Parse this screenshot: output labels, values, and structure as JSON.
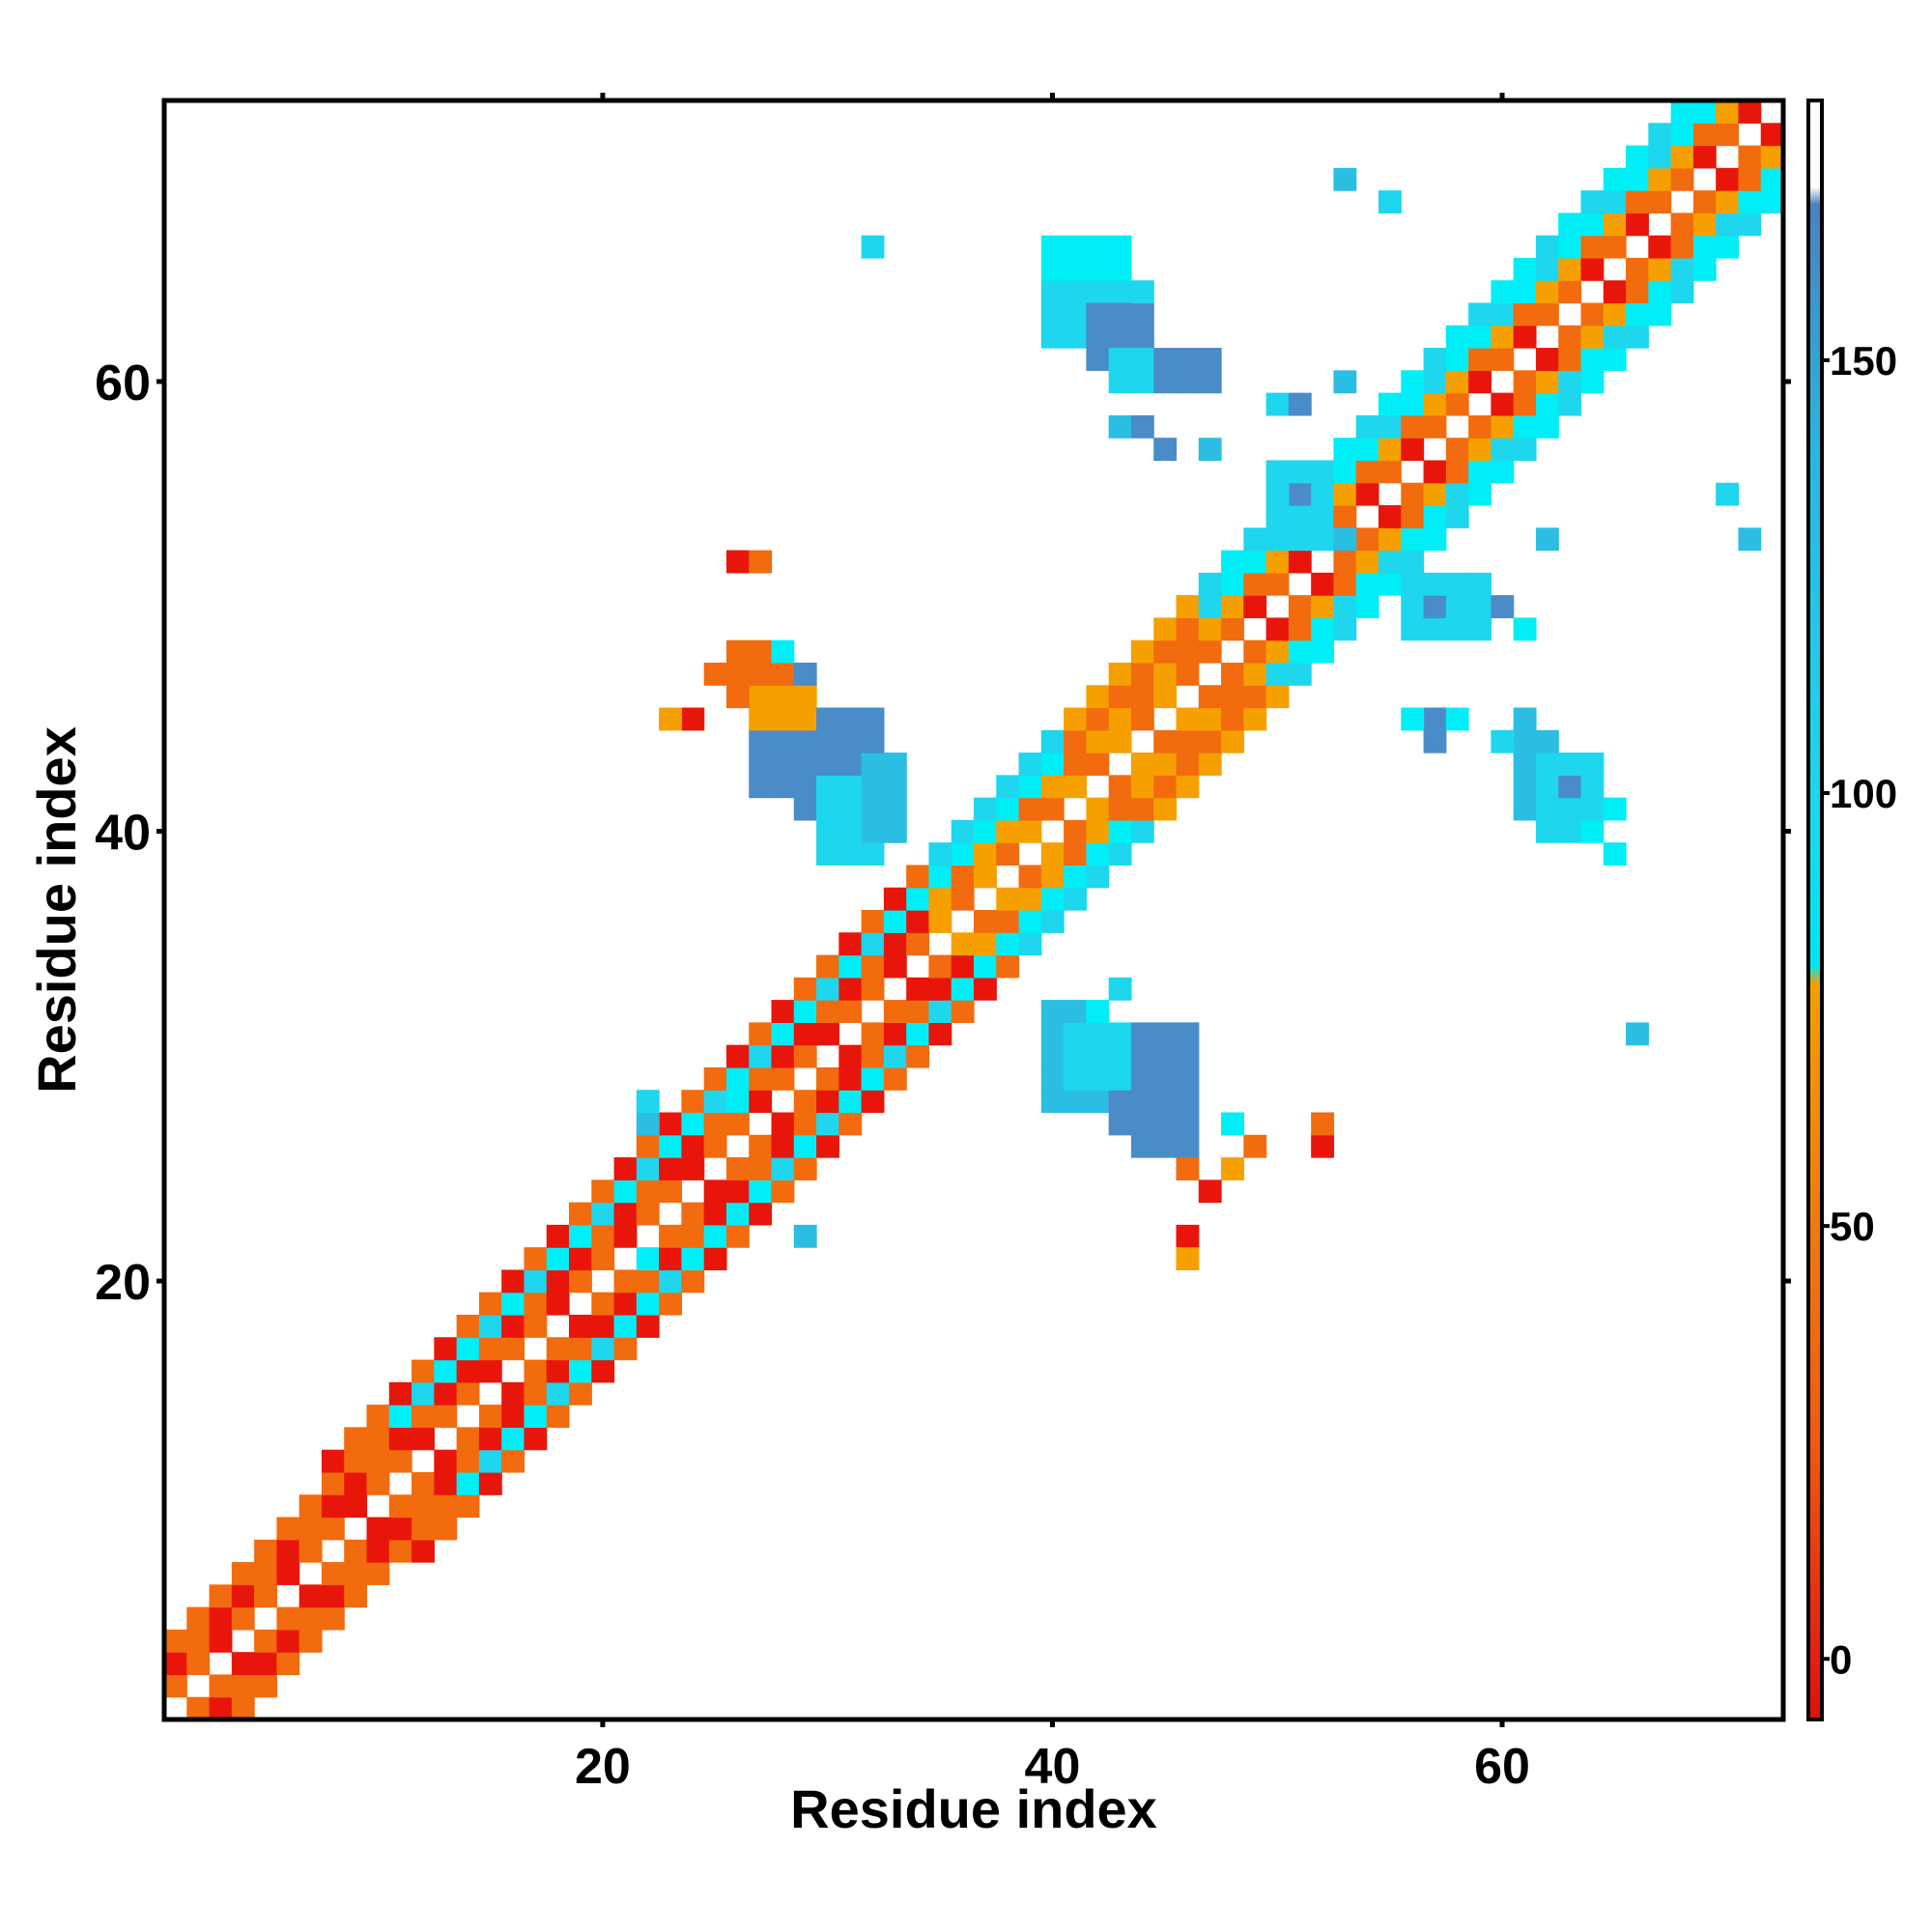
{
  "chart_data": {
    "type": "heatmap",
    "title": "",
    "xlabel": "Residue index",
    "ylabel": "Residue index",
    "xlim": [
      0.5,
      72.5
    ],
    "ylim": [
      0.5,
      72.5
    ],
    "xticks": [
      20,
      40,
      60
    ],
    "yticks": [
      20,
      40,
      60
    ],
    "grid": false,
    "legend": "colorbar-right",
    "colorbar": {
      "ticks": [
        0,
        50,
        100,
        150
      ],
      "range": [
        -7,
        180
      ],
      "stops": [
        {
          "value": -7,
          "color": "#dd1111"
        },
        {
          "value": 25,
          "color": "#f05a10"
        },
        {
          "value": 50,
          "color": "#f07a10"
        },
        {
          "value": 78,
          "color": "#f5a000"
        },
        {
          "value": 80,
          "color": "#00e6f0"
        },
        {
          "value": 100,
          "color": "#1ed6ee"
        },
        {
          "value": 140,
          "color": "#29b6de"
        },
        {
          "value": 168,
          "color": "#4a82c0"
        },
        {
          "value": 170,
          "color": "#ffffff"
        },
        {
          "value": 180,
          "color": "#ffffff"
        }
      ]
    },
    "palette": {
      "R": "#e8160a",
      "O": "#f26b0f",
      "A": "#f5a000",
      "C": "#00eef5",
      "S": "#1ed6ee",
      "M": "#2cbde2",
      "B": "#4a8cc8"
    },
    "clusters": [
      {
        "name": "diagonal-band",
        "color": "O",
        "x": [
          1,
          71
        ],
        "y": [
          1,
          72
        ],
        "note": "pattern of i,i±1..4 contacts"
      },
      {
        "name": "helix1-helix2-contacts",
        "color": "B",
        "x": [
          27,
          33
        ],
        "y": [
          40,
          47
        ]
      },
      {
        "name": "helix2-helix1-contacts",
        "color": "B",
        "x": [
          40,
          47
        ],
        "y": [
          27,
          33
        ]
      },
      {
        "name": "upper-left-arm",
        "color": "S",
        "x": [
          40,
          46
        ],
        "y": [
          59,
          66
        ]
      },
      {
        "name": "right-arm",
        "color": "S",
        "x": [
          61,
          66
        ],
        "y": [
          39,
          45
        ]
      }
    ]
  }
}
